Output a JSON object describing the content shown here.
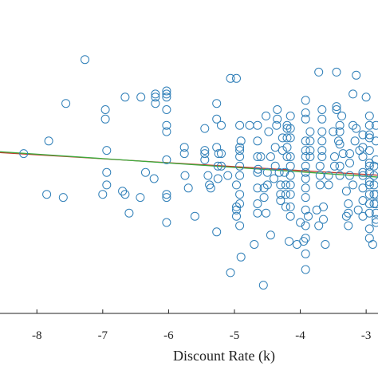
{
  "chart_data": {
    "type": "scatter",
    "title": "",
    "xlabel": "Discount Rate (k)",
    "ylabel": "",
    "xlim": [
      -8.56,
      -2.82
    ],
    "ylim": [
      0,
      1
    ],
    "x_ticks": [
      {
        "value": -8,
        "label": "-8"
      },
      {
        "value": -7,
        "label": "-7"
      },
      {
        "value": -6,
        "label": "-6"
      },
      {
        "value": -5,
        "label": "-5"
      },
      {
        "value": -4,
        "label": "-4"
      },
      {
        "value": -3,
        "label": "-3"
      }
    ],
    "grid": false,
    "colors": {
      "points": "#2f7fb8",
      "fit_green": "#3caa3c",
      "fit_red": "#c0392b",
      "axis": "#222222"
    },
    "fit_lines": [
      {
        "x": [
          -8.56,
          -2.82
        ],
        "y": [
          0.513,
          0.441
        ],
        "color": "red"
      },
      {
        "x": [
          -8.56,
          -2.82
        ],
        "y": [
          0.516,
          0.435
        ],
        "color": "green"
      }
    ],
    "points": [
      [
        -8.2,
        0.51
      ],
      [
        -7.85,
        0.38
      ],
      [
        -7.82,
        0.55
      ],
      [
        -7.6,
        0.37
      ],
      [
        -7.56,
        0.67
      ],
      [
        -7.27,
        0.81
      ],
      [
        -7.0,
        0.38
      ],
      [
        -6.96,
        0.62
      ],
      [
        -6.96,
        0.65
      ],
      [
        -6.94,
        0.52
      ],
      [
        -6.94,
        0.41
      ],
      [
        -6.94,
        0.45
      ],
      [
        -6.7,
        0.39
      ],
      [
        -6.66,
        0.69
      ],
      [
        -6.66,
        0.38
      ],
      [
        -6.6,
        0.32
      ],
      [
        -6.43,
        0.37
      ],
      [
        -6.42,
        0.69
      ],
      [
        -6.35,
        0.45
      ],
      [
        -6.22,
        0.43
      ],
      [
        -6.2,
        0.67
      ],
      [
        -6.2,
        0.69
      ],
      [
        -6.2,
        0.7
      ],
      [
        -6.03,
        0.29
      ],
      [
        -6.03,
        0.37
      ],
      [
        -6.03,
        0.38
      ],
      [
        -6.03,
        0.49
      ],
      [
        -6.03,
        0.58
      ],
      [
        -6.03,
        0.6
      ],
      [
        -6.03,
        0.65
      ],
      [
        -6.03,
        0.69
      ],
      [
        -6.03,
        0.71
      ],
      [
        -6.03,
        0.7
      ],
      [
        -5.76,
        0.53
      ],
      [
        -5.76,
        0.51
      ],
      [
        -5.75,
        0.44
      ],
      [
        -5.7,
        0.4
      ],
      [
        -5.6,
        0.31
      ],
      [
        -5.45,
        0.49
      ],
      [
        -5.45,
        0.51
      ],
      [
        -5.45,
        0.52
      ],
      [
        -5.45,
        0.59
      ],
      [
        -5.4,
        0.44
      ],
      [
        -5.38,
        0.41
      ],
      [
        -5.36,
        0.4
      ],
      [
        -5.27,
        0.26
      ],
      [
        -5.27,
        0.53
      ],
      [
        -5.27,
        0.62
      ],
      [
        -5.27,
        0.67
      ],
      [
        -5.25,
        0.43
      ],
      [
        -5.25,
        0.47
      ],
      [
        -5.24,
        0.51
      ],
      [
        -5.2,
        0.47
      ],
      [
        -5.2,
        0.51
      ],
      [
        -5.2,
        0.6
      ],
      [
        -5.1,
        0.44
      ],
      [
        -5.06,
        0.75
      ],
      [
        -5.06,
        0.13
      ],
      [
        -4.97,
        0.75
      ],
      [
        -4.97,
        0.34
      ],
      [
        -4.97,
        0.31
      ],
      [
        -4.97,
        0.33
      ],
      [
        -4.97,
        0.41
      ],
      [
        -4.92,
        0.6
      ],
      [
        -4.92,
        0.53
      ],
      [
        -4.92,
        0.44
      ],
      [
        -4.92,
        0.28
      ],
      [
        -4.92,
        0.35
      ],
      [
        -4.92,
        0.38
      ],
      [
        -4.92,
        0.52
      ],
      [
        -4.92,
        0.5
      ],
      [
        -4.92,
        0.47
      ],
      [
        -4.9,
        0.55
      ],
      [
        -4.9,
        0.18
      ],
      [
        -4.77,
        0.6
      ],
      [
        -4.7,
        0.22
      ],
      [
        -4.65,
        0.6
      ],
      [
        -4.65,
        0.55
      ],
      [
        -4.65,
        0.5
      ],
      [
        -4.65,
        0.45
      ],
      [
        -4.65,
        0.4
      ],
      [
        -4.65,
        0.35
      ],
      [
        -4.65,
        0.32
      ],
      [
        -4.64,
        0.46
      ],
      [
        -4.6,
        0.5
      ],
      [
        -4.56,
        0.09
      ],
      [
        -4.55,
        0.4
      ],
      [
        -4.55,
        0.37
      ],
      [
        -4.52,
        0.32
      ],
      [
        -4.52,
        0.63
      ],
      [
        -4.5,
        0.41
      ],
      [
        -4.5,
        0.45
      ],
      [
        -4.48,
        0.58
      ],
      [
        -4.45,
        0.5
      ],
      [
        -4.45,
        0.25
      ],
      [
        -4.4,
        0.43
      ],
      [
        -4.38,
        0.47
      ],
      [
        -4.38,
        0.53
      ],
      [
        -4.36,
        0.6
      ],
      [
        -4.35,
        0.62
      ],
      [
        -4.35,
        0.65
      ],
      [
        -4.32,
        0.45
      ],
      [
        -4.3,
        0.38
      ],
      [
        -4.3,
        0.36
      ],
      [
        -4.3,
        0.41
      ],
      [
        -4.27,
        0.52
      ],
      [
        -4.27,
        0.56
      ],
      [
        -4.24,
        0.45
      ],
      [
        -4.22,
        0.38
      ],
      [
        -4.22,
        0.41
      ],
      [
        -4.22,
        0.34
      ],
      [
        -4.2,
        0.5
      ],
      [
        -4.2,
        0.53
      ],
      [
        -4.2,
        0.56
      ],
      [
        -4.2,
        0.59
      ],
      [
        -4.2,
        0.6
      ],
      [
        -4.17,
        0.23
      ],
      [
        -4.15,
        0.31
      ],
      [
        -4.15,
        0.34
      ],
      [
        -4.15,
        0.38
      ],
      [
        -4.15,
        0.41
      ],
      [
        -4.15,
        0.44
      ],
      [
        -4.15,
        0.47
      ],
      [
        -4.15,
        0.5
      ],
      [
        -4.15,
        0.56
      ],
      [
        -4.15,
        0.59
      ],
      [
        -4.15,
        0.63
      ],
      [
        -4.05,
        0.22
      ],
      [
        -4.0,
        0.29
      ],
      [
        -3.95,
        0.23
      ],
      [
        -3.92,
        0.37
      ],
      [
        -3.92,
        0.33
      ],
      [
        -3.92,
        0.28
      ],
      [
        -3.92,
        0.24
      ],
      [
        -3.92,
        0.14
      ],
      [
        -3.92,
        0.19
      ],
      [
        -3.92,
        0.4
      ],
      [
        -3.92,
        0.43
      ],
      [
        -3.92,
        0.45
      ],
      [
        -3.92,
        0.47
      ],
      [
        -3.92,
        0.5
      ],
      [
        -3.92,
        0.52
      ],
      [
        -3.92,
        0.55
      ],
      [
        -3.92,
        0.62
      ],
      [
        -3.92,
        0.64
      ],
      [
        -3.92,
        0.68
      ],
      [
        -3.88,
        0.31
      ],
      [
        -3.85,
        0.5
      ],
      [
        -3.85,
        0.52
      ],
      [
        -3.85,
        0.55
      ],
      [
        -3.85,
        0.58
      ],
      [
        -3.75,
        0.33
      ],
      [
        -3.72,
        0.28
      ],
      [
        -3.72,
        0.77
      ],
      [
        -3.7,
        0.41
      ],
      [
        -3.7,
        0.44
      ],
      [
        -3.7,
        0.47
      ],
      [
        -3.67,
        0.5
      ],
      [
        -3.67,
        0.52
      ],
      [
        -3.67,
        0.55
      ],
      [
        -3.67,
        0.58
      ],
      [
        -3.67,
        0.62
      ],
      [
        -3.67,
        0.65
      ],
      [
        -3.65,
        0.3
      ],
      [
        -3.65,
        0.34
      ],
      [
        -3.62,
        0.22
      ],
      [
        -3.57,
        0.41
      ],
      [
        -3.57,
        0.44
      ],
      [
        -3.5,
        0.58
      ],
      [
        -3.48,
        0.5
      ],
      [
        -3.48,
        0.47
      ],
      [
        -3.45,
        0.66
      ],
      [
        -3.45,
        0.65
      ],
      [
        -3.45,
        0.77
      ],
      [
        -3.42,
        0.55
      ],
      [
        -3.4,
        0.54
      ],
      [
        -3.4,
        0.47
      ],
      [
        -3.4,
        0.44
      ],
      [
        -3.4,
        0.58
      ],
      [
        -3.4,
        0.6
      ],
      [
        -3.37,
        0.63
      ],
      [
        -3.35,
        0.51
      ],
      [
        -3.3,
        0.39
      ],
      [
        -3.3,
        0.31
      ],
      [
        -3.27,
        0.35
      ],
      [
        -3.27,
        0.32
      ],
      [
        -3.27,
        0.28
      ],
      [
        -3.25,
        0.44
      ],
      [
        -3.25,
        0.48
      ],
      [
        -3.25,
        0.51
      ],
      [
        -3.2,
        0.7
      ],
      [
        -3.2,
        0.6
      ],
      [
        -3.2,
        0.41
      ],
      [
        -3.17,
        0.55
      ],
      [
        -3.15,
        0.76
      ],
      [
        -3.15,
        0.59
      ],
      [
        -3.12,
        0.33
      ],
      [
        -3.1,
        0.52
      ],
      [
        -3.05,
        0.31
      ],
      [
        -3.05,
        0.36
      ],
      [
        -3.05,
        0.44
      ],
      [
        -3.05,
        0.4
      ],
      [
        -3.05,
        0.45
      ],
      [
        -3.05,
        0.5
      ],
      [
        -3.05,
        0.53
      ],
      [
        -3.05,
        0.57
      ],
      [
        -3.0,
        0.69
      ],
      [
        -2.95,
        0.63
      ],
      [
        -2.95,
        0.6
      ],
      [
        -2.95,
        0.56
      ],
      [
        -2.95,
        0.52
      ],
      [
        -2.95,
        0.48
      ],
      [
        -2.95,
        0.45
      ],
      [
        -2.95,
        0.41
      ],
      [
        -2.95,
        0.38
      ],
      [
        -2.95,
        0.35
      ],
      [
        -2.95,
        0.32
      ],
      [
        -2.95,
        0.27
      ],
      [
        -2.95,
        0.24
      ],
      [
        -2.95,
        0.42
      ],
      [
        -2.95,
        0.47
      ],
      [
        -2.95,
        0.57
      ],
      [
        -2.9,
        0.22
      ],
      [
        -2.88,
        0.35
      ],
      [
        -2.88,
        0.38
      ],
      [
        -2.88,
        0.41
      ],
      [
        -2.88,
        0.44
      ],
      [
        -2.88,
        0.47
      ],
      [
        -2.85,
        0.29
      ],
      [
        -2.85,
        0.6
      ],
      [
        -2.85,
        0.3
      ],
      [
        -2.85,
        0.32
      ],
      [
        -2.85,
        0.35
      ],
      [
        -2.85,
        0.38
      ],
      [
        -2.85,
        0.49
      ],
      [
        -2.85,
        0.55
      ]
    ]
  }
}
